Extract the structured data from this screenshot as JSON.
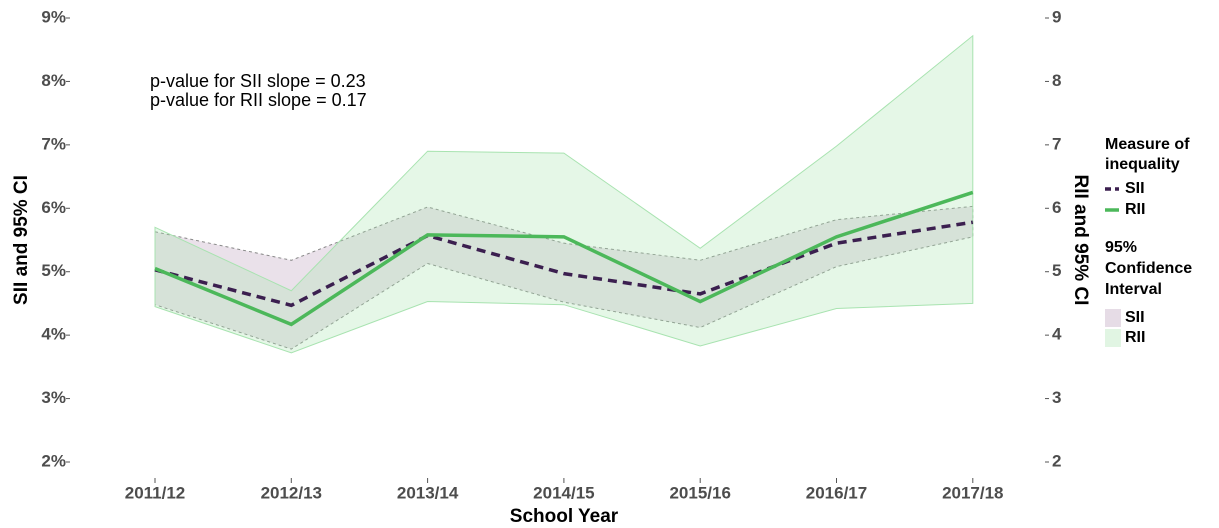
{
  "chart_data": {
    "type": "line",
    "xlabel": "School Year",
    "ylabel": "SII and 95% CI",
    "y2label": "RII and 95% CI",
    "annotations": [
      "p-value for SII slope = 0.23",
      "p-value for RII slope = 0.17"
    ],
    "categories": [
      "2011/12",
      "2012/13",
      "2013/14",
      "2014/15",
      "2015/16",
      "2016/17",
      "2017/18"
    ],
    "ylim": [
      2,
      9
    ],
    "yticks": [
      {
        "value": 2,
        "label": "2%"
      },
      {
        "value": 3,
        "label": "3%"
      },
      {
        "value": 4,
        "label": "4%"
      },
      {
        "value": 5,
        "label": "5%"
      },
      {
        "value": 6,
        "label": "6%"
      },
      {
        "value": 7,
        "label": "7%"
      },
      {
        "value": 8,
        "label": "8%"
      },
      {
        "value": 9,
        "label": "9%"
      }
    ],
    "y2lim": [
      2,
      9
    ],
    "y2ticks": [
      2,
      3,
      4,
      5,
      6,
      7,
      8,
      9
    ],
    "legend_title": [
      "Measure of",
      "inequality"
    ],
    "band_legend_title": [
      "95%",
      "Confidence",
      "Interval"
    ],
    "series": [
      {
        "name": "SII",
        "color": "#3b1f4f",
        "band_color": "#b89bb8",
        "dash": true,
        "values": [
          5.03,
          4.47,
          5.57,
          4.97,
          4.65,
          5.45,
          5.78
        ],
        "lower": [
          4.48,
          3.78,
          5.13,
          4.52,
          4.12,
          5.08,
          5.55
        ],
        "upper": [
          5.63,
          5.18,
          6.02,
          5.45,
          5.18,
          5.82,
          6.03
        ]
      },
      {
        "name": "RII",
        "color": "#4cb85a",
        "band_color": "#a8e3b0",
        "dash": false,
        "axis": "y2",
        "values": [
          5.05,
          4.17,
          5.58,
          5.55,
          4.53,
          5.55,
          6.25
        ],
        "lower": [
          4.45,
          3.72,
          4.53,
          4.48,
          3.83,
          4.42,
          4.5
        ],
        "upper": [
          5.7,
          4.7,
          6.9,
          6.87,
          5.37,
          6.98,
          8.72
        ]
      }
    ]
  }
}
